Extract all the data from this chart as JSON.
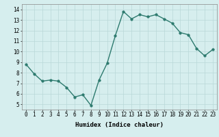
{
  "x": [
    0,
    1,
    2,
    3,
    4,
    5,
    6,
    7,
    8,
    9,
    10,
    11,
    12,
    13,
    14,
    15,
    16,
    17,
    18,
    19,
    20,
    21,
    22,
    23
  ],
  "y": [
    8.8,
    7.9,
    7.2,
    7.3,
    7.2,
    6.6,
    5.7,
    5.9,
    4.9,
    7.3,
    8.9,
    11.5,
    13.8,
    13.1,
    13.5,
    13.3,
    13.5,
    13.1,
    12.7,
    11.8,
    11.6,
    10.3,
    9.6,
    10.2
  ],
  "xlabel": "Humidex (Indice chaleur)",
  "ylim": [
    4.5,
    14.5
  ],
  "xlim": [
    -0.5,
    23.5
  ],
  "yticks": [
    5,
    6,
    7,
    8,
    9,
    10,
    11,
    12,
    13,
    14
  ],
  "xticks": [
    0,
    1,
    2,
    3,
    4,
    5,
    6,
    7,
    8,
    9,
    10,
    11,
    12,
    13,
    14,
    15,
    16,
    17,
    18,
    19,
    20,
    21,
    22,
    23
  ],
  "line_color": "#2d7a6e",
  "marker_color": "#2d7a6e",
  "bg_color": "#d6eeee",
  "grid_color": "#b8d8d8",
  "line_width": 1.0,
  "marker_size": 2.5,
  "tick_fontsize": 5.5,
  "xlabel_fontsize": 6.5
}
